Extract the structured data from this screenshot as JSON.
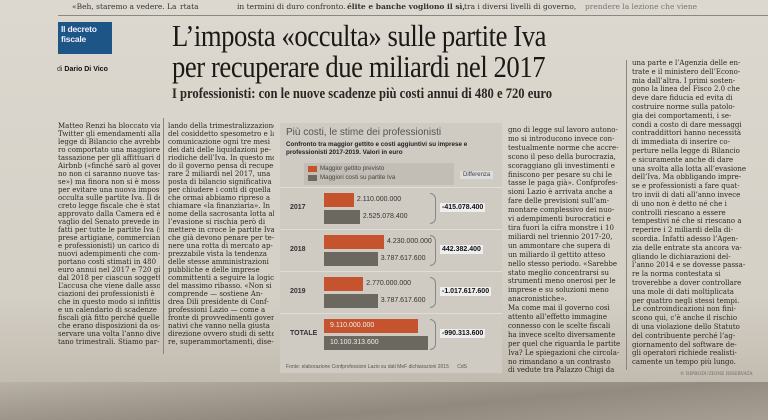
{
  "top_fragments": [
    "«Beh, staremo a vedere. La",
    "rtata",
    "in termini di duro confronto.",
    "élite e banche vogliono il sì,",
    "tra i diversi livelli di governo,",
    "prendere la lezione che viene"
  ],
  "section_label": "Il decreto fiscale",
  "byline": {
    "prefix": "di",
    "author": "Dario Di Vico"
  },
  "headline": [
    "L’imposta «occulta» sulle partite Iva",
    "per recuperare due miliardi nel 2017"
  ],
  "subheadline": "I professionisti: con le nuove scadenze più costi annui di 480 e 720 euro",
  "columns": [
    [
      "Matteo Renzi ha bloccato via",
      "Twitter gli emendamenti alla",
      "legge di Bilancio che avrebbe-",
      "ro comportato una maggiore",
      "tassazione per gli affittuari di",
      "Airbnb («finché sarò al gover-",
      "no non ci saranno nuove tas-",
      "se») ma finora non si è mosso",
      "per evitare una nuova imposta",
      "occulta sulle partite Iva. Il de-",
      "creto legge fiscale che è stato",
      "approvato dalla Camera ed è al",
      "vaglio del Senato prevede in-",
      "fatti per tutte le partite Iva (im-",
      "prese artigiane, commercianti",
      "e professionisti) un carico di 8",
      "nuovi adempimenti che com-",
      "portano costi stimati in 480",
      "euro annui nel 2017 e 720 già",
      "dal 2018 per ciascun soggetto.",
      "L’accusa che viene dalle asso-",
      "ciazioni dei professionisti è",
      "che in questo modo si infittisc-",
      "e un calendario di scadenze",
      "fiscali già fitto perché quelle",
      "che erano disposizioni da os-",
      "servare una volta l’anno diven-",
      "tano trimestrali. Stiamo par-"
    ],
    [
      "lando della trimestralizzazione",
      "del cosiddetto spesometro e la",
      "comunicazione ogni tre mesi",
      "dei dati delle liquidazioni pe-",
      "riodiche dell’Iva. In questo mo-",
      "do il governo pensa di recupe-",
      "rare 2 miliardi nel 2017, una",
      "posta di bilancio significativa",
      "per chiudere i conti di quella",
      "che ormai abbiamo ripreso a",
      "chiamare «la finanziaria». In",
      "nome della sacrosanta lotta al-",
      "l’evasione si rischia però di",
      "mettere in croce le partite Iva",
      "che già devono penare per te-",
      "nere una rotta di mercato ap-",
      "prezzabile vista la tendenza",
      "delle stesse amministrazioni",
      "pubbliche e delle imprese",
      "committenti a seguire la logica",
      "del massimo ribasso. «Non si",
      "comprende — sostiene An-",
      "drea Dili presidente di Conf-",
      "professioni Lazio — come a",
      "fronte di provvedimenti gover-",
      "nativi che vanno nella giusta",
      "direzione ovvero studi di setto-",
      "re, superammortamenti, dise-"
    ],
    [
      "gno di legge sul lavoro autono-",
      "mo si introducono invece con-",
      "testualmente norme che accre-",
      "scono il peso della burocrazia,",
      "scoraggiano gli investimenti e",
      "finiscono per pesare su chi le",
      "tasse le paga già». Confprofes-",
      "sioni Lazio è arrivata anche a",
      "fare delle previsioni sull’am-",
      "montare complessivo dei nuo-",
      "vi adempimenti burocratici e",
      "tira fuori la cifra monstre i 10",
      "miliardi nel triennio 2017-20,",
      "un ammontare che supera di",
      "un miliardo il gettito atteso",
      "nello stesso periodo. «Sarebbe",
      "stato meglio concentrarsi su",
      "strumenti meno onerosi per le",
      "imprese e su soluzioni meno",
      "anacronistiche».",
      "  Ma come mai il governo così",
      "attento all’effetto immagine",
      "connesso con le scelte fiscali",
      "ha invece scelto diversamente",
      "per quel che riguarda le partite",
      "Iva? Le spiegazioni che circola-",
      "no rimandano a un contrasto",
      "di vedute tra Palazzo Chigi da"
    ],
    [
      "una parte e l’Agenzia delle en-",
      "trate e il ministero dell’Econo-",
      "mia dall’altra. I primi sosten-",
      "gono la linea del Fisco 2.0 che",
      "deve dare fiducia ed evita di",
      "costruire norme sulla patolo-",
      "gia dei comportamenti, i se-",
      "condi a costo di dare messaggi",
      "contraddittori hanno necessità",
      "di immediata di inserire co-",
      "perture nella legge di Bilancio",
      "e sicuramente anche di dare",
      "una svolta alla lotta all’evasione",
      "dell’Iva. Ma obbligando impre-",
      "se e professionisti a fare quat-",
      "tro invii di dati all’anno invece",
      "di uno non è detto né che i",
      "controlli riescano a essere",
      "tempestivi né che si riescano a",
      "reperire i 2 miliardi della di-",
      "scordia. Infatti adesso l’Agen-",
      "zia delle entrate sta ancora va-",
      "gliando le dichiarazioni del-",
      "l’anno 2014 e se dovesse passa-",
      "re la norma contestata si",
      "troverebbe a dover controllare",
      "una mole di dati moltiplicata",
      "per quattro negli stessi tempi.",
      "Le controindicazioni non fini-",
      "scono qui, c’è anche il rischio",
      "di una violazione dello Statuto",
      "del contribuente perché l’ag-",
      "giornamento del software de-",
      "gli operatori richiede realisti-",
      "camente un tempo più lungo."
    ]
  ],
  "copyright": "© RIPRODUZIONE RISERVATA",
  "chart_data": {
    "type": "bar",
    "title": "Più costi, le stime dei professionisti",
    "subtitle": "Confronto tra maggior gettito e costi aggiuntivi su imprese e professionisti 2017-2019. Valori in euro",
    "legend": [
      "Maggior gettito previsto",
      "Maggiori costi su partite Iva"
    ],
    "difference_label": "Differenza",
    "categories": [
      "2017",
      "2018",
      "2019",
      "TOTALE"
    ],
    "series": [
      {
        "name": "Maggior gettito previsto",
        "values": [
          2110000000,
          4230000000,
          2770000000,
          9110000000
        ],
        "labels": [
          "2.110.000.000",
          "4.230.000.000",
          "2.770.000.000",
          "9.110.000.000"
        ],
        "color": "#c4532e"
      },
      {
        "name": "Maggiori costi su partite Iva",
        "values": [
          2525078400,
          3787617600,
          3787617600,
          10100313600
        ],
        "labels": [
          "2.525.078.400",
          "3.787.617.600",
          "3.787.617.600",
          "10.100.313.600"
        ],
        "color": "#6b6860"
      }
    ],
    "differences": [
      "-415.078.400",
      "442.382.400",
      "-1.017.617.600",
      "-990.313.600"
    ],
    "source": "Fonte: elaborazione Confprofessioni Lazio su dati MeF dichiarazioni 2015",
    "credit": "CdS"
  }
}
